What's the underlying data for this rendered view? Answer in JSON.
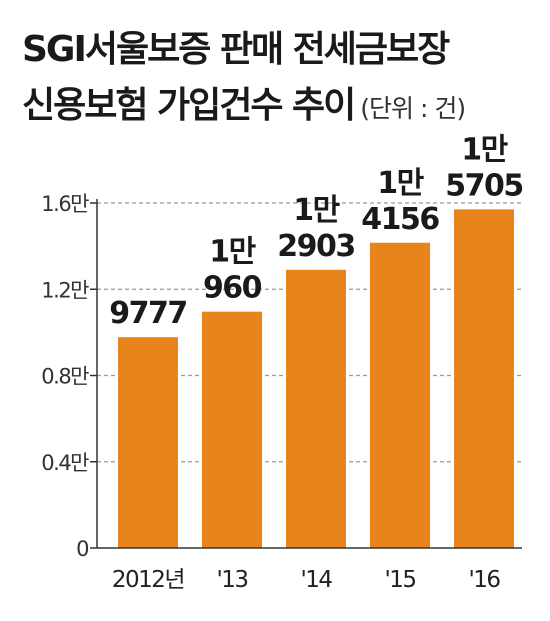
{
  "header": {
    "title_line1": "SGI서울보증 판매 전세금보장",
    "title_line2": "신용보험 가입건수 추이",
    "unit_note": "(단위 : 건)"
  },
  "colors": {
    "bar": "#e8841c",
    "grid": "#9a9a9a",
    "axis": "#333333",
    "text": "#1a1a1a"
  },
  "chart_data": {
    "type": "bar",
    "title": "SGI서울보증 판매 전세금보장 신용보험 가입건수 추이",
    "unit": "건",
    "categories": [
      "2012년",
      "'13",
      "'14",
      "'15",
      "'16"
    ],
    "values": [
      9777,
      10960,
      12903,
      14156,
      15705
    ],
    "data_labels": [
      [
        "9777"
      ],
      [
        "1만",
        "960"
      ],
      [
        "1만",
        "2903"
      ],
      [
        "1만",
        "4156"
      ],
      [
        "1만",
        "5705"
      ]
    ],
    "yticks": [
      {
        "value": 0,
        "label": "0"
      },
      {
        "value": 4000,
        "label": "0.4만"
      },
      {
        "value": 8000,
        "label": "0.8만"
      },
      {
        "value": 12000,
        "label": "1.2만"
      },
      {
        "value": 16000,
        "label": "1.6만"
      }
    ],
    "ylim": [
      0,
      16000
    ],
    "grid": "dashed horizontal",
    "legend": "none"
  }
}
